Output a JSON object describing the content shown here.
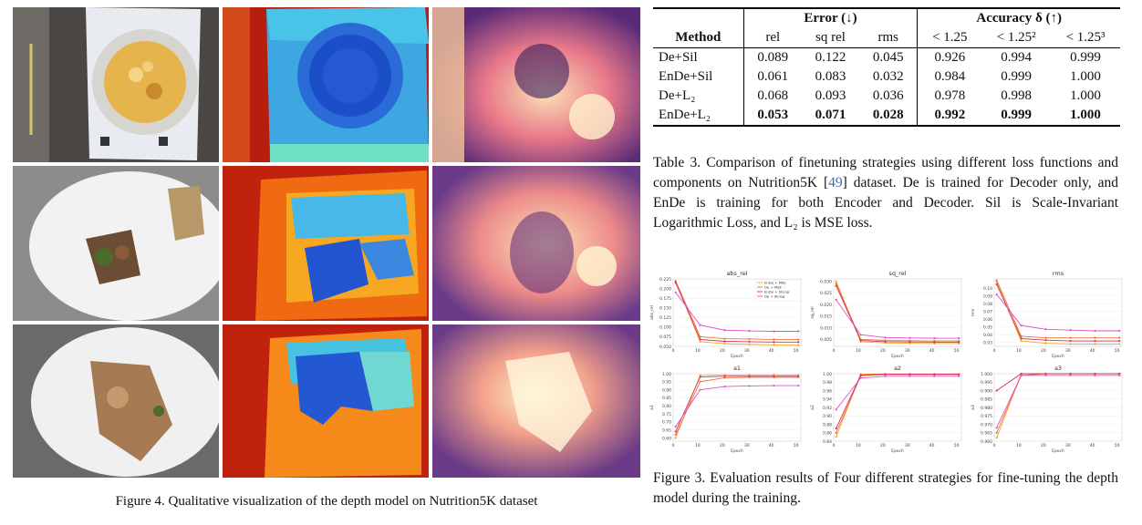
{
  "figure4": {
    "caption": "Figure 4. Qualitative visualization of the depth model on Nutrition5K dataset",
    "rows": [
      {
        "rgb": "plate-with-salad-on-paper",
        "depth": "depth-map-bowl",
        "pred": "predicted-depth-1"
      },
      {
        "rgb": "plate-with-meat-and-bread",
        "depth": "depth-map-plate",
        "pred": "predicted-depth-2"
      },
      {
        "rgb": "plate-with-chicken",
        "depth": "depth-map-plate-2",
        "pred": "predicted-depth-3"
      }
    ]
  },
  "table3": {
    "group_error": "Error (↓)",
    "group_accuracy": "Accuracy δ (↑)",
    "col_method": "Method",
    "cols": [
      "rel",
      "sq rel",
      "rms",
      "< 1.25",
      "< 1.25²",
      "< 1.25³"
    ],
    "rows": [
      {
        "method": "De+Sil",
        "values": [
          "0.089",
          "0.122",
          "0.045",
          "0.926",
          "0.994",
          "0.999"
        ],
        "bold": false
      },
      {
        "method": "EnDe+Sil",
        "values": [
          "0.061",
          "0.083",
          "0.032",
          "0.984",
          "0.999",
          "1.000"
        ],
        "bold": false
      },
      {
        "method": "De+L₂",
        "values": [
          "0.068",
          "0.093",
          "0.036",
          "0.978",
          "0.998",
          "1.000"
        ],
        "bold": false
      },
      {
        "method": "EnDe+L₂",
        "values": [
          "0.053",
          "0.071",
          "0.028",
          "0.992",
          "0.999",
          "1.000"
        ],
        "bold": true
      }
    ],
    "caption_pre": "Table 3. Comparison of finetuning strategies using different loss functions and components on Nutrition5K [",
    "caption_ref": "49",
    "caption_post": "] dataset. De is trained for Decoder only, and EnDe is training for both Encoder and Decoder. Sil is Scale-Invariant Logarithmic Loss, and L₂ is MSE loss."
  },
  "figure3": {
    "caption": "Figure 3. Evaluation results of Four different strategies for fine-tuning the depth model during the training.",
    "chart_data": [
      {
        "type": "line",
        "title": "abs_rel",
        "xlabel": "Epoch",
        "ylabel": "abs_rel",
        "x": [
          1,
          11,
          21,
          31,
          41,
          51
        ],
        "ylim": [
          0.05,
          0.225
        ],
        "yticks": [
          "0.225",
          "0.200",
          "0.175",
          "0.150",
          "0.125",
          "0.100",
          "0.075",
          "0.050"
        ],
        "xticks": [
          "0",
          "10",
          "20",
          "30",
          "40",
          "50"
        ],
        "legend": [
          "EnDe + MSE",
          "De + MSE",
          "EnDe + SILlog",
          "De + SILlog"
        ],
        "series": [
          {
            "name": "EnDe + MSE",
            "color": "#f5a623",
            "values": [
              0.218,
              0.062,
              0.057,
              0.055,
              0.054,
              0.053
            ]
          },
          {
            "name": "De + MSE",
            "color": "#e8743b",
            "values": [
              0.22,
              0.075,
              0.07,
              0.069,
              0.068,
              0.068
            ]
          },
          {
            "name": "EnDe + SILlog",
            "color": "#d62f5a",
            "values": [
              0.215,
              0.068,
              0.063,
              0.062,
              0.061,
              0.061
            ]
          },
          {
            "name": "De + SILlog",
            "color": "#e64fc6",
            "values": [
              0.19,
              0.105,
              0.092,
              0.09,
              0.089,
              0.089
            ]
          }
        ]
      },
      {
        "type": "line",
        "title": "sq_rel",
        "xlabel": "Epoch",
        "ylabel": "sq_rel",
        "x": [
          1,
          11,
          21,
          31,
          41,
          51
        ],
        "ylim": [
          0.002,
          0.031
        ],
        "yticks": [
          "0.030",
          "0.025",
          "0.020",
          "0.015",
          "0.010",
          "0.005"
        ],
        "xticks": [
          "0",
          "10",
          "20",
          "30",
          "40",
          "50"
        ],
        "series": [
          {
            "name": "EnDe + MSE",
            "color": "#f5a623",
            "values": [
              0.03,
              0.004,
              0.0035,
              0.0033,
              0.0032,
              0.0032
            ]
          },
          {
            "name": "De + MSE",
            "color": "#e8743b",
            "values": [
              0.029,
              0.005,
              0.0045,
              0.0044,
              0.0043,
              0.0043
            ]
          },
          {
            "name": "EnDe + SILlog",
            "color": "#d62f5a",
            "values": [
              0.028,
              0.0045,
              0.004,
              0.0039,
              0.0038,
              0.0038
            ]
          },
          {
            "name": "De + SILlog",
            "color": "#e64fc6",
            "values": [
              0.022,
              0.007,
              0.0058,
              0.0056,
              0.0055,
              0.0055
            ]
          }
        ]
      },
      {
        "type": "line",
        "title": "rms",
        "xlabel": "Epoch",
        "ylabel": "rms",
        "x": [
          1,
          11,
          21,
          31,
          41,
          51
        ],
        "ylim": [
          0.025,
          0.112
        ],
        "yticks": [
          "0.10",
          "0.09",
          "0.08",
          "0.07",
          "0.06",
          "0.05",
          "0.04",
          "0.03"
        ],
        "xticks": [
          "0",
          "10",
          "20",
          "30",
          "40",
          "50"
        ],
        "series": [
          {
            "name": "EnDe + MSE",
            "color": "#f5a623",
            "values": [
              0.108,
              0.032,
              0.029,
              0.028,
              0.028,
              0.028
            ]
          },
          {
            "name": "De + MSE",
            "color": "#e8743b",
            "values": [
              0.11,
              0.038,
              0.036,
              0.036,
              0.036,
              0.036
            ]
          },
          {
            "name": "EnDe + SILlog",
            "color": "#d62f5a",
            "values": [
              0.105,
              0.035,
              0.033,
              0.032,
              0.032,
              0.032
            ]
          },
          {
            "name": "De + SILlog",
            "color": "#e64fc6",
            "values": [
              0.092,
              0.052,
              0.047,
              0.046,
              0.045,
              0.045
            ]
          }
        ]
      },
      {
        "type": "line",
        "title": "a1",
        "xlabel": "Epoch",
        "ylabel": "a1",
        "x": [
          1,
          11,
          21,
          31,
          41,
          51
        ],
        "ylim": [
          0.58,
          1.0
        ],
        "yticks": [
          "1.00",
          "0.95",
          "0.90",
          "0.85",
          "0.80",
          "0.75",
          "0.70",
          "0.65",
          "0.60"
        ],
        "xticks": [
          "0",
          "10",
          "20",
          "30",
          "40",
          "50"
        ],
        "series": [
          {
            "name": "EnDe + MSE",
            "color": "#f5a623",
            "values": [
              0.6,
              0.99,
              0.992,
              0.992,
              0.992,
              0.992
            ]
          },
          {
            "name": "De + MSE",
            "color": "#e8743b",
            "values": [
              0.62,
              0.95,
              0.975,
              0.978,
              0.978,
              0.978
            ]
          },
          {
            "name": "EnDe + SILlog",
            "color": "#d62f5a",
            "values": [
              0.64,
              0.98,
              0.984,
              0.984,
              0.984,
              0.984
            ]
          },
          {
            "name": "De + SILlog",
            "color": "#e64fc6",
            "values": [
              0.67,
              0.9,
              0.92,
              0.924,
              0.926,
              0.926
            ]
          }
        ]
      },
      {
        "type": "line",
        "title": "a2",
        "xlabel": "Epoch",
        "ylabel": "a2",
        "x": [
          1,
          11,
          21,
          31,
          41,
          51
        ],
        "ylim": [
          0.84,
          1.0
        ],
        "yticks": [
          "1.00",
          "0.98",
          "0.96",
          "0.94",
          "0.92",
          "0.90",
          "0.88",
          "0.86",
          "0.84"
        ],
        "xticks": [
          "0",
          "10",
          "20",
          "30",
          "40",
          "50"
        ],
        "series": [
          {
            "name": "EnDe + MSE",
            "color": "#f5a623",
            "values": [
              0.85,
              0.999,
              0.999,
              0.999,
              0.999,
              0.999
            ]
          },
          {
            "name": "De + MSE",
            "color": "#e8743b",
            "values": [
              0.86,
              0.995,
              0.998,
              0.998,
              0.998,
              0.998
            ]
          },
          {
            "name": "EnDe + SILlog",
            "color": "#d62f5a",
            "values": [
              0.87,
              0.997,
              0.999,
              0.999,
              0.999,
              0.999
            ]
          },
          {
            "name": "De + SILlog",
            "color": "#e64fc6",
            "values": [
              0.915,
              0.99,
              0.994,
              0.994,
              0.994,
              0.994
            ]
          }
        ]
      },
      {
        "type": "line",
        "title": "a3",
        "xlabel": "Epoch",
        "ylabel": "a3",
        "x": [
          1,
          11,
          21,
          31,
          41,
          51
        ],
        "ylim": [
          0.96,
          1.0
        ],
        "yticks": [
          "1.000",
          "0.995",
          "0.990",
          "0.985",
          "0.980",
          "0.975",
          "0.970",
          "0.965",
          "0.960"
        ],
        "xticks": [
          "0",
          "10",
          "20",
          "30",
          "40",
          "50"
        ],
        "series": [
          {
            "name": "EnDe + MSE",
            "color": "#f5a623",
            "values": [
              0.962,
              1.0,
              1.0,
              1.0,
              1.0,
              1.0
            ]
          },
          {
            "name": "De + MSE",
            "color": "#e8743b",
            "values": [
              0.965,
              0.999,
              1.0,
              1.0,
              1.0,
              1.0
            ]
          },
          {
            "name": "EnDe + SILlog",
            "color": "#d62f5a",
            "values": [
              0.99,
              1.0,
              1.0,
              1.0,
              1.0,
              1.0
            ]
          },
          {
            "name": "De + SILlog",
            "color": "#e64fc6",
            "values": [
              0.968,
              0.999,
              0.999,
              0.999,
              0.999,
              0.999
            ]
          }
        ]
      }
    ]
  }
}
